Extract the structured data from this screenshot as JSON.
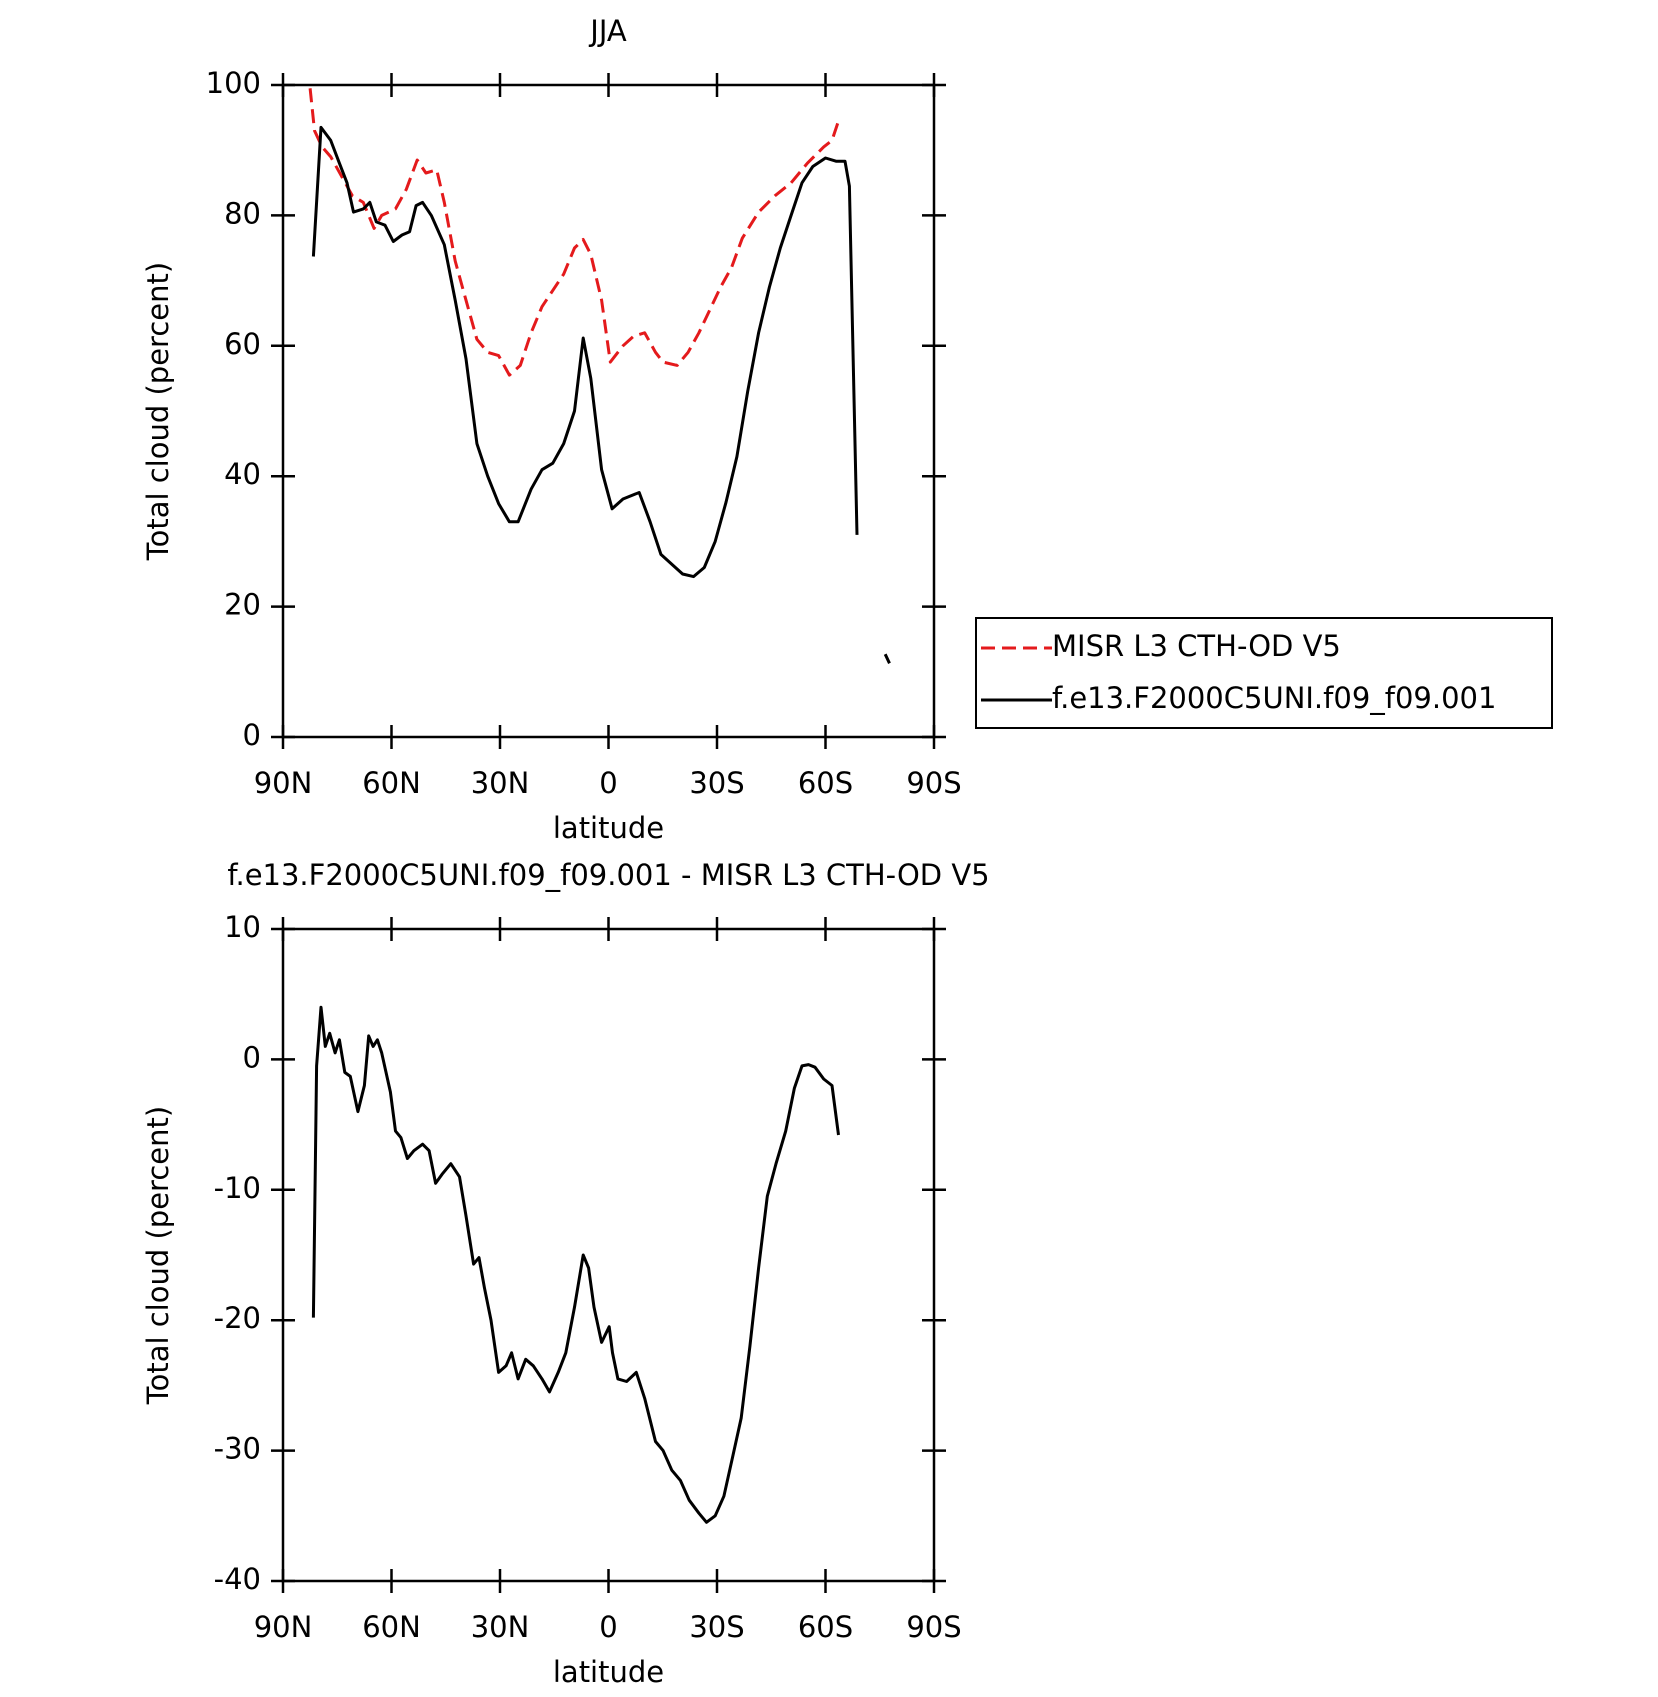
{
  "chart_data": [
    {
      "type": "line",
      "title": "JJA",
      "xlabel": "latitude",
      "ylabel": "Total cloud (percent)",
      "xlim": [
        90,
        -90
      ],
      "ylim": [
        0,
        100
      ],
      "xticks": [
        {
          "value": 90,
          "label": "90N"
        },
        {
          "value": 60,
          "label": "60N"
        },
        {
          "value": 30,
          "label": "30N"
        },
        0,
        {
          "value": -30,
          "label": "30S"
        },
        {
          "value": -60,
          "label": "60S"
        },
        {
          "value": -90,
          "label": "90S"
        }
      ],
      "yticks": [
        0,
        20,
        40,
        60,
        80,
        100
      ],
      "legend": "right",
      "series": [
        {
          "name": "MISR L3 CTH-OD V5",
          "color": "#e41a1c",
          "line_style": "dashed",
          "x": [
            82.5,
            81.3,
            79.2,
            76.8,
            73.8,
            70.8,
            67.8,
            64.8,
            62.7,
            58.9,
            55.9,
            52.9,
            50.5,
            47.5,
            45.4,
            42.4,
            39.4,
            36.4,
            33.4,
            30.4,
            27.4,
            24.4,
            21.4,
            18.4,
            15.4,
            12.4,
            9.4,
            7,
            4.9,
            1.9,
            -0.5,
            -4,
            -7,
            -10,
            -13,
            -15.1,
            -19,
            -22,
            -25,
            -28,
            -31,
            -34,
            -37,
            -41.5,
            -46,
            -50.5,
            -55,
            -59.5,
            -61.8,
            -63.6
          ],
          "values": [
            99.5,
            93,
            90.5,
            89,
            86,
            83,
            82,
            78,
            80,
            81,
            84,
            88.5,
            86.5,
            87,
            82,
            73,
            67,
            61,
            59,
            58.5,
            55.5,
            57,
            62,
            66,
            68.5,
            71,
            75,
            76.3,
            74,
            67,
            57.5,
            60,
            61.5,
            62,
            59,
            57.5,
            57,
            59,
            62,
            65.5,
            69,
            72,
            76.5,
            80.5,
            83,
            85,
            88,
            90.5,
            91.5,
            94.5
          ]
        },
        {
          "name": "f.e13.F2000C5UNI.f09_f09.001",
          "color": "#000000",
          "line_style": "solid",
          "x": [
            81.6,
            79.5,
            76.8,
            74.4,
            72.3,
            70.5,
            67.8,
            66,
            64.2,
            61.8,
            59.5,
            57.1,
            55,
            53.2,
            51.4,
            49,
            45.4,
            42.4,
            39.4,
            36.4,
            33.4,
            30.4,
            27.4,
            25,
            21.4,
            18.4,
            15.4,
            12.4,
            9.4,
            7,
            4.9,
            1.9,
            -1,
            -4,
            -8.5,
            -11.5,
            -14.5,
            -17.5,
            -20.5,
            -23.5,
            -26.5,
            -29.5,
            -32.5,
            -35.5,
            -38.5,
            -41.5,
            -44.5,
            -47.5,
            -50.5,
            -53.5,
            -56.5,
            -60,
            -63,
            -65.4,
            -66.6,
            -68.7,
            null,
            -76.5,
            -77.7
          ],
          "values": [
            73.7,
            93.5,
            91.5,
            88,
            85,
            80.5,
            81,
            82,
            79,
            78.5,
            76,
            77,
            77.5,
            81.5,
            82,
            80,
            75.5,
            67,
            58,
            45,
            40,
            35.8,
            33,
            33,
            38,
            41,
            42,
            45,
            50,
            61.2,
            55,
            41,
            35,
            36.5,
            37.5,
            33,
            28,
            26.5,
            25,
            24.6,
            26,
            30,
            36,
            43,
            53,
            62,
            69,
            75,
            80,
            85,
            87.5,
            88.8,
            88.3,
            88.3,
            84.5,
            31,
            null,
            12.7,
            11.3
          ]
        }
      ]
    },
    {
      "type": "line",
      "title": "f.e13.F2000C5UNI.f09_f09.001 - MISR L3 CTH-OD V5",
      "xlabel": "latitude",
      "ylabel": "Total cloud (percent)",
      "xlim": [
        90,
        -90
      ],
      "ylim": [
        -40,
        10
      ],
      "xticks": [
        {
          "value": 90,
          "label": "90N"
        },
        {
          "value": 60,
          "label": "60N"
        },
        {
          "value": 30,
          "label": "30N"
        },
        0,
        {
          "value": -30,
          "label": "30S"
        },
        {
          "value": -60,
          "label": "60S"
        },
        {
          "value": -90,
          "label": "90S"
        }
      ],
      "yticks": [
        -40,
        -30,
        -20,
        -10,
        0,
        10
      ],
      "series": [
        {
          "color": "#000000",
          "line_style": "solid",
          "x": [
            81.6,
            80.7,
            79.5,
            78.3,
            77.1,
            75.6,
            74.4,
            72.9,
            71.4,
            69.3,
            67.5,
            66.3,
            65.1,
            63.9,
            62.7,
            60.3,
            58.9,
            57.4,
            55.6,
            53.8,
            51.4,
            49.6,
            47.8,
            46,
            43.6,
            41.2,
            39.4,
            37.3,
            35.8,
            34.3,
            32.5,
            30.4,
            28.3,
            26.8,
            25,
            22.9,
            20.8,
            18.4,
            16.3,
            13.9,
            11.8,
            9.4,
            7,
            5.5,
            4,
            1.9,
            -0.2,
            -1.1,
            -2.6,
            -5,
            -7.7,
            -10,
            -13,
            -15.1,
            -17.5,
            -19.9,
            -22.3,
            -25,
            -27.1,
            -29.5,
            -31.9,
            -34.3,
            -36.7,
            -39.1,
            -41.5,
            -43.9,
            -46.3,
            -49,
            -51.4,
            -53.5,
            -55.3,
            -57.1,
            -59.5,
            -61.8,
            -63.6
          ],
          "values": [
            -19.8,
            -0.5,
            4,
            1,
            2,
            0.5,
            1.5,
            -1,
            -1.3,
            -4,
            -2,
            1.8,
            1,
            1.5,
            0.5,
            -2.5,
            -5.5,
            -6,
            -7.6,
            -7,
            -6.5,
            -7,
            -9.5,
            -8.8,
            -8,
            -9,
            -12,
            -15.7,
            -15.2,
            -17.5,
            -20,
            -24,
            -23.5,
            -22.5,
            -24.5,
            -23,
            -23.5,
            -24.5,
            -25.5,
            -24,
            -22.5,
            -19,
            -15,
            -16,
            -19,
            -21.7,
            -20.5,
            -22.5,
            -24.5,
            -24.7,
            -24,
            -26,
            -29.3,
            -30,
            -31.5,
            -32.3,
            -33.8,
            -34.8,
            -35.5,
            -35,
            -33.5,
            -30.5,
            -27.5,
            -22,
            -16,
            -10.5,
            -8,
            -5.5,
            -2.2,
            -0.5,
            -0.4,
            -0.6,
            -1.5,
            -2,
            -5.8
          ]
        }
      ]
    }
  ]
}
